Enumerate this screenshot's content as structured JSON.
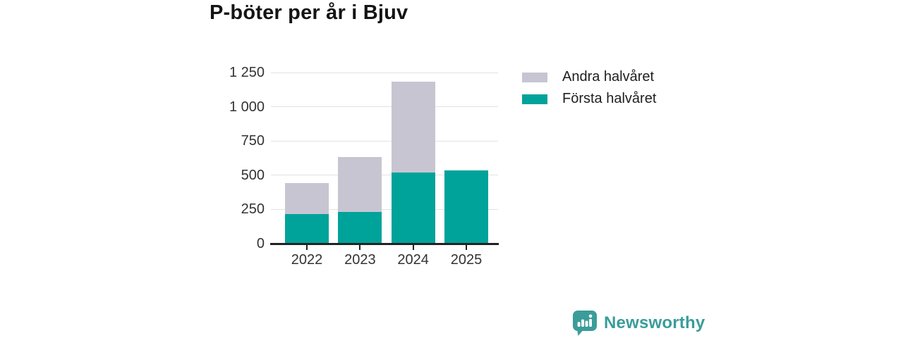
{
  "chart_data": {
    "type": "bar",
    "stacked": true,
    "title": "P-böter per år i Bjuv",
    "categories": [
      "2022",
      "2023",
      "2024",
      "2025"
    ],
    "series": [
      {
        "name": "Första halvåret",
        "color": "#00a39a",
        "values": [
          215,
          230,
          520,
          535
        ]
      },
      {
        "name": "Andra halvåret",
        "color": "#c7c5d2",
        "values": [
          225,
          405,
          665,
          0
        ]
      }
    ],
    "xlabel": "",
    "ylabel": "",
    "ylim": [
      0,
      1250
    ],
    "y_ticks": [
      {
        "value": 0,
        "label": "0"
      },
      {
        "value": 250,
        "label": "250"
      },
      {
        "value": 500,
        "label": "500"
      },
      {
        "value": 750,
        "label": "750"
      },
      {
        "value": 1000,
        "label": "1 000"
      },
      {
        "value": 1250,
        "label": "1 250"
      }
    ],
    "grid": true,
    "legend_position": "right",
    "legend_order": [
      "Andra halvåret",
      "Första halvåret"
    ]
  },
  "branding": {
    "logo_text": "Newsworthy",
    "logo_icon": "newsworthy-bubble-chart-icon",
    "logo_color": "#3a9d99"
  },
  "colors": {
    "first_half": "#00a39a",
    "second_half": "#c7c5d2",
    "gridline": "#e3e3e3",
    "axis": "#222222",
    "background": "#ffffff"
  }
}
